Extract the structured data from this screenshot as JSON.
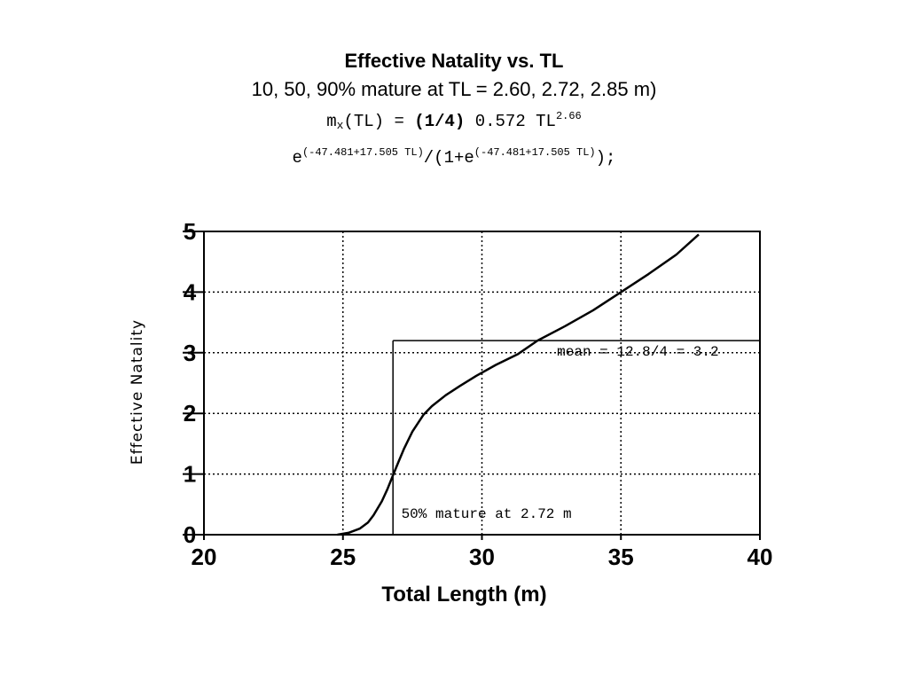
{
  "title": {
    "line1": "Effective Natality vs. TL",
    "line2": "10, 50, 90% mature at TL = 2.60, 2.72, 2.85 m)",
    "line3_m": "m",
    "line3_sub": "x",
    "line3_a": "(TL) = ",
    "line3_bold": "(1/4)",
    "line3_b": " 0.572 TL",
    "line3_sup": "2.66",
    "line4_e1": "e",
    "line4_sup1": "(-47.481+17.505 TL)",
    "line4_mid": "/(1+e",
    "line4_sup2": "(-47.481+17.505 TL)",
    "line4_end": ");"
  },
  "chart_data": {
    "type": "line",
    "xlabel": "Total Length (m)",
    "ylabel": "Effective Natality",
    "xlim": [
      20,
      40
    ],
    "ylim": [
      0,
      5
    ],
    "xticks": [
      20,
      25,
      30,
      35,
      40
    ],
    "yticks": [
      0,
      1,
      2,
      3,
      4,
      5
    ],
    "grid": true,
    "series": [
      {
        "x": [
          24.8,
          25.2,
          25.6,
          25.9,
          26.1,
          26.4,
          26.6,
          26.8,
          27.0,
          27.2,
          27.5,
          27.9,
          28.2,
          28.7,
          29.2,
          29.8,
          30.5,
          31.3,
          32.0,
          33.0,
          34.0,
          35.0,
          36.0,
          37.0,
          37.8
        ],
        "y": [
          0.0,
          0.03,
          0.1,
          0.2,
          0.32,
          0.55,
          0.75,
          0.98,
          1.2,
          1.42,
          1.7,
          1.98,
          2.12,
          2.3,
          2.45,
          2.62,
          2.8,
          2.98,
          3.2,
          3.44,
          3.7,
          4.0,
          4.3,
          4.62,
          4.95
        ]
      }
    ],
    "reference_lines": {
      "vertical_x": 26.8,
      "horizontal_y": 3.2
    },
    "annotations": [
      {
        "text": "mean = 12.8/4 = 3.2",
        "x": 32.7,
        "y": 2.95
      },
      {
        "text": "50% mature at 2.72 m",
        "x": 27.1,
        "y": 0.28
      }
    ]
  }
}
